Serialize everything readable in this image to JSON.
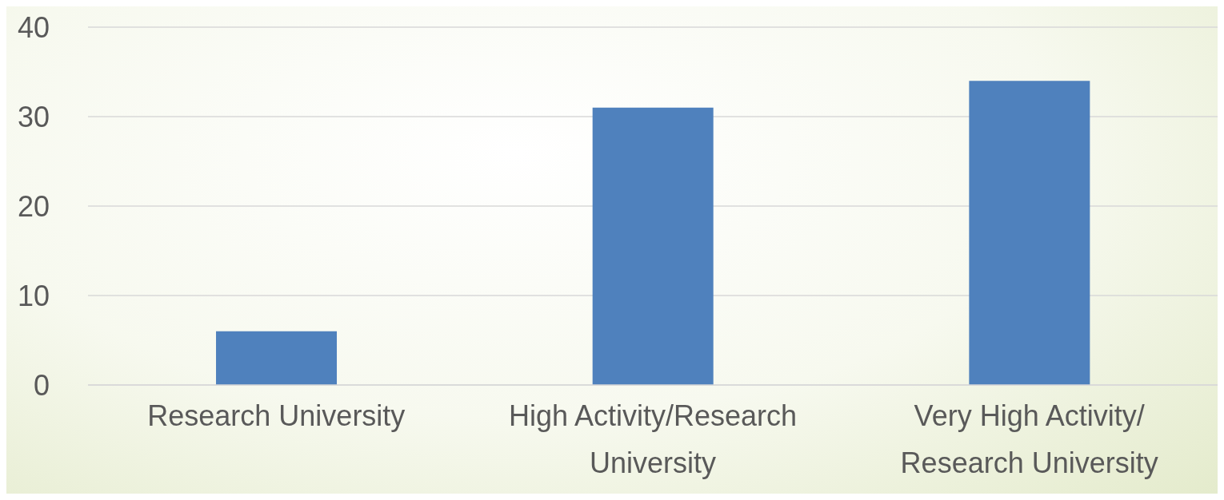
{
  "chart_data": {
    "type": "bar",
    "categories": [
      "Research University",
      "High Activity/Research University",
      "Very High Activity/Research University"
    ],
    "values": [
      6,
      31,
      34
    ],
    "color": "#4f81bd",
    "ylim": [
      0,
      40
    ],
    "yticks": [
      0,
      10,
      20,
      30,
      40
    ],
    "grid": "y"
  }
}
